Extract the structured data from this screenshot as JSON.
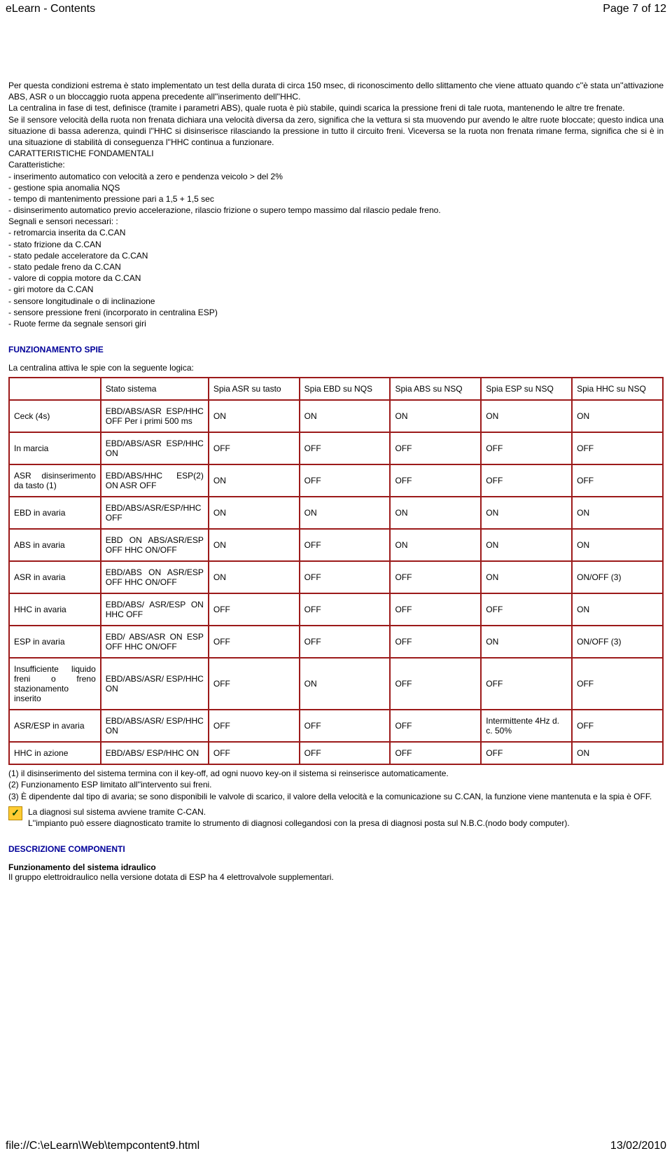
{
  "header": {
    "title": "eLearn - Contents",
    "pager": "Page 7 of 12"
  },
  "body": {
    "p1": "Per questa condizioni estrema è stato implementato un test della durata di circa 150 msec, di riconoscimento dello slittamento che viene attuato quando c''è stata un''attivazione ABS, ASR o un bloccaggio ruota appena precedente all''inserimento dell''HHC.",
    "p2": "La centralina in fase di test, definisce (tramite i parametri ABS), quale ruota è più stabile, quindi scarica la pressione freni di tale ruota, mantenendo le altre tre frenate.",
    "p3": "Se il sensore velocità della ruota non frenata dichiara una velocità diversa da zero, significa che la vettura si sta muovendo pur avendo le altre ruote bloccate; questo indica una situazione di bassa aderenza, quindi l''HHC si disinserisce rilasciando la pressione in tutto il circuito freni. Viceversa se la ruota non frenata rimane ferma, significa che si è in una situazione di stabilità di conseguenza l''HHC continua a funzionare.",
    "cf_title": "CARATTERISTICHE FONDAMENTALI",
    "cf_sub": "Caratteristiche:",
    "cf1": "- inserimento automatico con velocità a zero e pendenza veicolo > del 2%",
    "cf2": "- gestione spia anomalia NQS",
    "cf3": "- tempo di mantenimento pressione pari a 1,5 + 1,5 sec",
    "cf4": "- disinserimento automatico previo accelerazione, rilascio frizione o supero tempo massimo dal rilascio pedale freno.",
    "ss_title": "Segnali e sensori necessari: :",
    "ss1": "- retromarcia inserita da C.CAN",
    "ss2": "- stato frizione da C.CAN",
    "ss3": "- stato pedale acceleratore da C.CAN",
    "ss4": "- stato pedale freno da C.CAN",
    "ss5": "- valore di coppia motore da C.CAN",
    "ss6": "- giri motore da C.CAN",
    "ss7": "- sensore longitudinale o di inclinazione",
    "ss8": "- sensore pressione freni (incorporato in centralina ESP)",
    "ss9": "- Ruote ferme da segnale sensori giri"
  },
  "spie": {
    "heading": "FUNZIONAMENTO SPIE",
    "intro": "La centralina attiva le spie con la seguente logica:",
    "columns": [
      "",
      "Stato sistema",
      "Spia ASR su tasto",
      "Spia EBD su NQS",
      "Spia ABS su NSQ",
      "Spia ESP su NSQ",
      "Spia HHC su NSQ"
    ],
    "rows": [
      {
        "c0": "Ceck (4s)",
        "c1": "EBD/ABS/ASR ESP/HHC OFF Per i primi 500 ms",
        "c2": "ON",
        "c3": "ON",
        "c4": "ON",
        "c5": "ON",
        "c6": "ON"
      },
      {
        "c0": "In marcia",
        "c1": "EBD/ABS/ASR ESP/HHC ON",
        "c2": "OFF",
        "c3": "OFF",
        "c4": "OFF",
        "c5": "OFF",
        "c6": "OFF"
      },
      {
        "c0": "ASR disinserimento da tasto (1)",
        "c1": "EBD/ABS/HHC ESP(2) ON ASR OFF",
        "c2": "ON",
        "c3": "OFF",
        "c4": "OFF",
        "c5": "OFF",
        "c6": "OFF"
      },
      {
        "c0": "EBD in avaria",
        "c1": "EBD/ABS/ASR/ESP/HHC OFF",
        "c2": "ON",
        "c3": "ON",
        "c4": "ON",
        "c5": "ON",
        "c6": "ON"
      },
      {
        "c0": "ABS in avaria",
        "c1": "EBD ON ABS/ASR/ESP OFF HHC ON/OFF",
        "c2": "ON",
        "c3": "OFF",
        "c4": "ON",
        "c5": "ON",
        "c6": "ON"
      },
      {
        "c0": "ASR in avaria",
        "c1": "EBD/ABS ON ASR/ESP OFF HHC ON/OFF",
        "c2": "ON",
        "c3": "OFF",
        "c4": "OFF",
        "c5": "ON",
        "c6": "ON/OFF (3)"
      },
      {
        "c0": "HHC in avaria",
        "c1": "EBD/ABS/ ASR/ESP ON HHC OFF",
        "c2": "OFF",
        "c3": "OFF",
        "c4": "OFF",
        "c5": "OFF",
        "c6": "ON"
      },
      {
        "c0": "ESP in avaria",
        "c1": "EBD/ ABS/ASR ON ESP OFF HHC ON/OFF",
        "c2": "OFF",
        "c3": "OFF",
        "c4": "OFF",
        "c5": "ON",
        "c6": "ON/OFF (3)"
      },
      {
        "c0": "Insufficiente liquido freni o freno stazionamento inserito",
        "c1": "EBD/ABS/ASR/ ESP/HHC ON",
        "c2": "OFF",
        "c3": "ON",
        "c4": "OFF",
        "c5": "OFF",
        "c6": "OFF"
      },
      {
        "c0": "ASR/ESP in avaria",
        "c1": "EBD/ABS/ASR/ ESP/HHC ON",
        "c2": "OFF",
        "c3": "OFF",
        "c4": "OFF",
        "c5": "Intermittente 4Hz d. c. 50%",
        "c6": "OFF"
      },
      {
        "c0": "HHC in azione",
        "c1": "EBD/ABS/ ESP/HHC ON",
        "c2": "OFF",
        "c3": "OFF",
        "c4": "OFF",
        "c5": "OFF",
        "c6": "ON"
      }
    ]
  },
  "footnotes": {
    "n1": "(1) il disinserimento del sistema termina con il key-off, ad ogni nuovo key-on il sistema si reinserisce automaticamente.",
    "n2": "(2) Funzionamento ESP limitato all''intervento sui freni.",
    "n3": "(3) È dipendente dal tipo di avaria; se sono disponibili le valvole di scarico, il valore della velocità e la comunicazione su C.CAN, la funzione viene mantenuta e la spia è OFF.",
    "diag1": "La diagnosi sul sistema avviene tramite C-CAN.",
    "diag2": "L''impianto può essere diagnosticato tramite lo strumento di diagnosi collegandosi con la presa di diagnosi posta sul N.B.C.(nodo body computer)."
  },
  "desc": {
    "heading": "DESCRIZIONE COMPONENTI",
    "sub_b": "Funzionamento del sistema idraulico",
    "sub_t": "Il gruppo elettroidraulico nella versione dotata di ESP ha 4 elettrovalvole supplementari."
  },
  "footer": {
    "path": "file://C:\\eLearn\\Web\\tempcontent9.html",
    "date": "13/02/2010"
  }
}
